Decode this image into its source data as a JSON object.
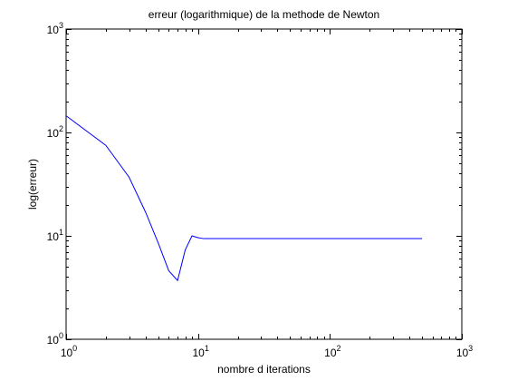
{
  "chart_data": {
    "type": "line",
    "title": "erreur (logarithmique) de la methode de Newton",
    "xlabel": "nombre d iterations",
    "ylabel": "log(erreur)",
    "x_scale": "log",
    "y_scale": "log",
    "xlim": [
      1,
      1000
    ],
    "ylim": [
      1,
      1000
    ],
    "x_ticks": [
      {
        "value": 1,
        "base": "10",
        "exp": "0"
      },
      {
        "value": 10,
        "base": "10",
        "exp": "1"
      },
      {
        "value": 100,
        "base": "10",
        "exp": "2"
      },
      {
        "value": 1000,
        "base": "10",
        "exp": "3"
      }
    ],
    "y_ticks": [
      {
        "value": 1,
        "base": "10",
        "exp": "0"
      },
      {
        "value": 10,
        "base": "10",
        "exp": "1"
      },
      {
        "value": 100,
        "base": "10",
        "exp": "2"
      },
      {
        "value": 1000,
        "base": "10",
        "exp": "3"
      }
    ],
    "grid": false,
    "series": [
      {
        "color": "#0000ff",
        "x": [
          1,
          2,
          3,
          4,
          5,
          6,
          7,
          8,
          9,
          10,
          11,
          20,
          50,
          100,
          200,
          500
        ],
        "y": [
          145,
          75,
          37,
          17,
          8.5,
          4.6,
          3.7,
          7.3,
          10.0,
          9.6,
          9.4,
          9.4,
          9.4,
          9.4,
          9.4,
          9.4
        ]
      }
    ]
  }
}
